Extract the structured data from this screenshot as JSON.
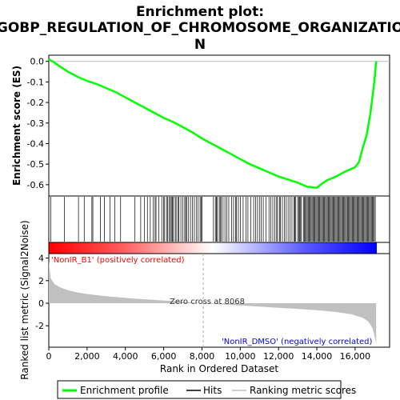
{
  "title_line1": "Enrichment plot:",
  "title_line2": "GOBP_REGULATION_OF_CHROMOSOME_ORGANIZATIO",
  "title_line3": "N",
  "chart_data": {
    "type": "line",
    "top_panel": {
      "ylabel": "Enrichment score (ES)",
      "yticks": [
        "0.0",
        "-0.1",
        "-0.2",
        "-0.3",
        "-0.4",
        "-0.5",
        "-0.6"
      ],
      "ylim": [
        -0.655,
        0.03
      ],
      "series": [
        {
          "name": "Enrichment profile",
          "color": "#00ff00",
          "x": [
            0,
            200,
            500,
            1000,
            1500,
            2000,
            2500,
            3000,
            3500,
            4000,
            4500,
            5000,
            5500,
            6000,
            6500,
            7000,
            7500,
            8000,
            8500,
            9000,
            9500,
            10000,
            10500,
            11000,
            11500,
            12000,
            12500,
            13000,
            13500,
            14000,
            14200,
            14500,
            15000,
            15500,
            16000,
            16200,
            16400,
            16600,
            16800,
            17000,
            17100
          ],
          "y": [
            0.01,
            0.0,
            -0.02,
            -0.05,
            -0.075,
            -0.095,
            -0.11,
            -0.13,
            -0.15,
            -0.175,
            -0.2,
            -0.225,
            -0.25,
            -0.275,
            -0.295,
            -0.32,
            -0.345,
            -0.375,
            -0.4,
            -0.425,
            -0.45,
            -0.475,
            -0.5,
            -0.52,
            -0.54,
            -0.56,
            -0.575,
            -0.59,
            -0.61,
            -0.615,
            -0.6,
            -0.58,
            -0.56,
            -0.535,
            -0.515,
            -0.49,
            -0.42,
            -0.36,
            -0.25,
            -0.1,
            0.0
          ]
        }
      ]
    },
    "hits": {
      "name": "Hits",
      "positions": [
        110,
        820,
        1550,
        1850,
        2250,
        2300,
        2700,
        2900,
        3200,
        3450,
        3750,
        4500,
        4800,
        5000,
        5150,
        5300,
        5450,
        5550,
        5600,
        5750,
        5900,
        6000,
        6050,
        6150,
        6200,
        6280,
        6350,
        6400,
        6450,
        6500,
        6600,
        6650,
        6750,
        6800,
        6900,
        7000,
        7100,
        7150,
        7200,
        7300,
        7400,
        7500,
        7600,
        7700,
        7800,
        7900,
        7950,
        8000,
        8600,
        8700,
        8750,
        8800,
        8900,
        8950,
        9000,
        9100,
        9200,
        9300,
        9400,
        9550,
        9650,
        9750,
        9800,
        9900,
        10000,
        10150,
        10300,
        10400,
        10550,
        10700,
        10800,
        10900,
        11000,
        11100,
        11200,
        11350,
        11500,
        11600,
        11700,
        11800,
        11900,
        11950,
        12050,
        12100,
        12200,
        12300,
        12400,
        12500,
        12600,
        12700,
        12800,
        12850,
        12900,
        13000,
        13050,
        13100,
        13150,
        13200,
        13300,
        13350,
        13400,
        13450,
        13500,
        13550,
        13600,
        13650,
        13700,
        13750,
        13800,
        13850,
        13900,
        13950,
        14000,
        14050,
        14100,
        14150,
        14200,
        14250,
        14300,
        14350,
        14400,
        14450,
        14500,
        14550,
        14600,
        14650,
        14700,
        14750,
        14800,
        14850,
        14900,
        14950,
        15000,
        15050,
        15100,
        15150,
        15200,
        15250,
        15300,
        15350,
        15400,
        15450,
        15500,
        15550,
        15600,
        15650,
        15700,
        15750,
        15800,
        15850,
        15900,
        15950,
        16000,
        16050,
        16100,
        16150,
        16200,
        16250,
        16300,
        16350,
        16400,
        16450,
        16500,
        16550,
        16600,
        16650,
        16700,
        16750,
        16800,
        16850,
        16900,
        16950,
        17000,
        17050
      ]
    },
    "bottom_panel": {
      "ylabel": "Ranked list metric (Signal2Noise)",
      "xlabel": "Rank in Ordered Dataset",
      "yticks": [
        "4",
        "2",
        "0",
        "-2"
      ],
      "ylim": [
        -3.9,
        4.4
      ],
      "xticks": [
        "0",
        "2,000",
        "4,000",
        "6,000",
        "8,000",
        "10,000",
        "12,000",
        "14,000",
        "16,000"
      ],
      "xlim": [
        0,
        17800
      ],
      "series": [
        {
          "name": "Ranking metric scores",
          "color": "#c0c0c0",
          "x": [
            0,
            100,
            300,
            600,
            1000,
            1500,
            2000,
            3000,
            4000,
            5000,
            6000,
            7000,
            8068,
            9000,
            10000,
            11000,
            12000,
            13000,
            14000,
            15000,
            15800,
            16400,
            16700,
            16900,
            17000,
            17100
          ],
          "y": [
            3.7,
            2.2,
            1.7,
            1.4,
            1.15,
            0.95,
            0.82,
            0.62,
            0.47,
            0.35,
            0.24,
            0.12,
            0.0,
            -0.1,
            -0.2,
            -0.3,
            -0.4,
            -0.5,
            -0.62,
            -0.78,
            -0.98,
            -1.3,
            -1.65,
            -2.2,
            -2.8,
            -3.6
          ]
        }
      ],
      "annotations": {
        "zero_cross": "Zero cross at 8068",
        "positive": "'NonIR_B1' (positively correlated)",
        "negative": "'NonIR_DMSO' (negatively correlated)"
      }
    }
  },
  "legend": {
    "items": [
      "Enrichment profile",
      "Hits",
      "Ranking metric scores"
    ],
    "colors": [
      "#00ff00",
      "#000000",
      "#c0c0c0"
    ]
  }
}
